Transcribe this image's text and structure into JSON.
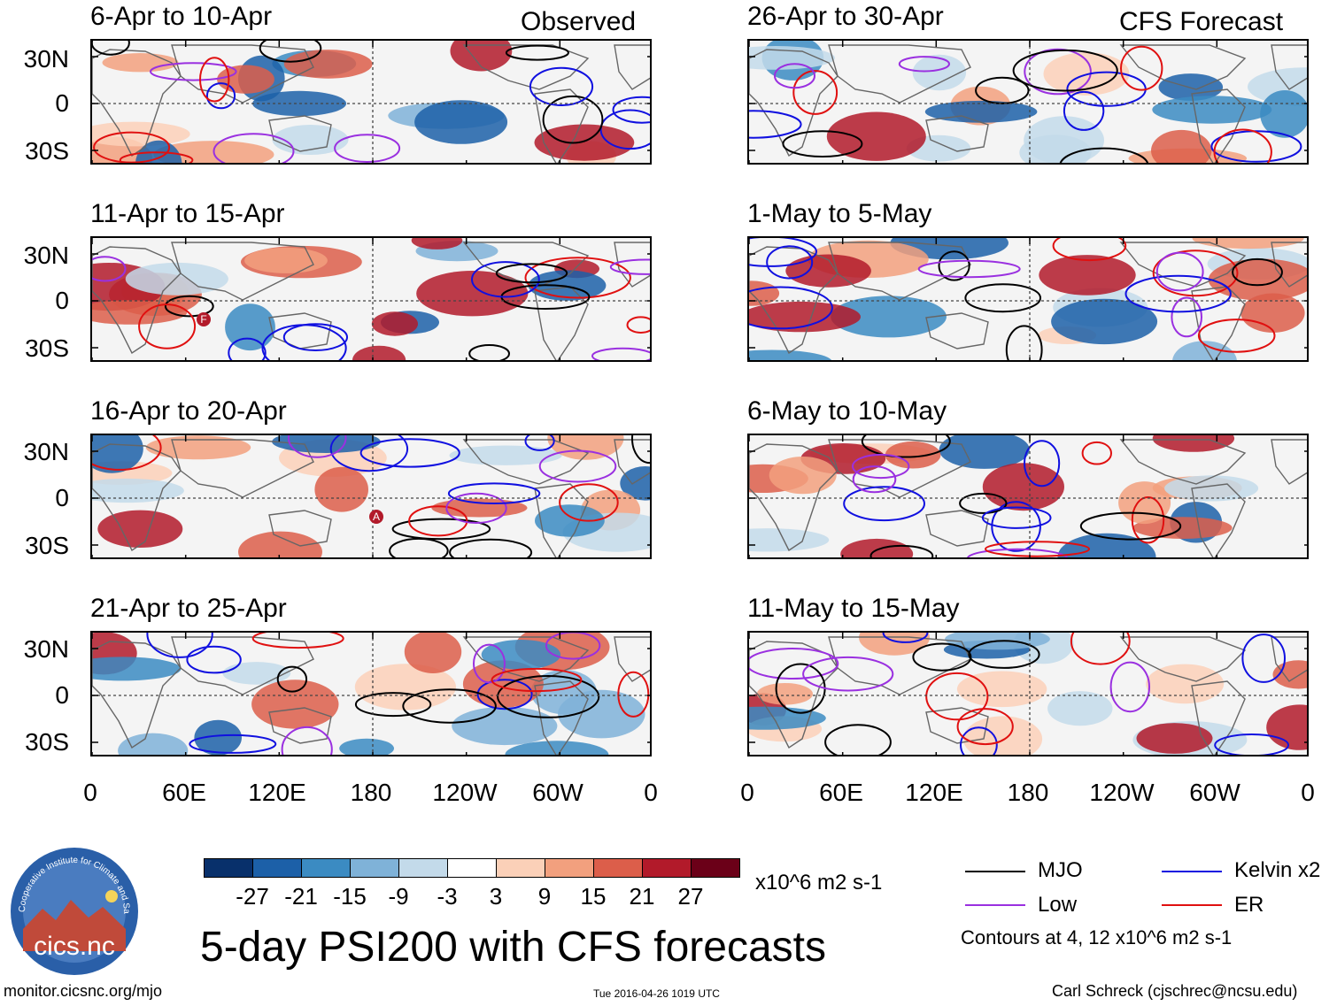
{
  "observed_tag": "Observed",
  "forecast_tag": "CFS Forecast",
  "panels_left": [
    {
      "title": "6-Apr to 10-Apr"
    },
    {
      "title": "11-Apr to 15-Apr"
    },
    {
      "title": "16-Apr to 20-Apr"
    },
    {
      "title": "21-Apr to 25-Apr"
    }
  ],
  "panels_right": [
    {
      "title": "26-Apr to 30-Apr"
    },
    {
      "title": "1-May to 5-May"
    },
    {
      "title": "6-May to 10-May"
    },
    {
      "title": "11-May to 15-May"
    }
  ],
  "lat_labels": [
    "30N",
    "0",
    "30S"
  ],
  "lon_labels": [
    "0",
    "60E",
    "120E",
    "180",
    "120W",
    "60W",
    "0"
  ],
  "cyclone_markers": [
    "F",
    "A"
  ],
  "colorbar": {
    "colors": [
      "#08306b",
      "#1c60a8",
      "#3b8bc2",
      "#7fb2d8",
      "#c3daea",
      "#ffffff",
      "#fbd0b8",
      "#f2a07e",
      "#dc5e4a",
      "#b21a2a",
      "#6b0018"
    ],
    "labels": [
      "-27",
      "-21",
      "-15",
      "-9",
      "-3",
      "3",
      "9",
      "15",
      "21",
      "27"
    ],
    "units": "x10^6 m2 s-1"
  },
  "legend": {
    "mjo": {
      "label": "MJO",
      "color": "#000000"
    },
    "kelvin": {
      "label": "Kelvin x2",
      "color": "#1010e0"
    },
    "low": {
      "label": "Low",
      "color": "#9a30e0"
    },
    "er": {
      "label": "ER",
      "color": "#e01010"
    },
    "contours_note": "Contours at 4, 12 x10^6 m2 s-1"
  },
  "logo_text": "cics.nc",
  "logo_arc_text": "Cooperative Institute for Climate and Satellites",
  "main_title": "5-day PSI200 with CFS forecasts",
  "footer": {
    "url": "monitor.cicsnc.org/mjo",
    "timestamp": "Tue 2016-04-26 1019 UTC",
    "credit": "Carl Schreck (cjschrec@ncsu.edu)"
  }
}
